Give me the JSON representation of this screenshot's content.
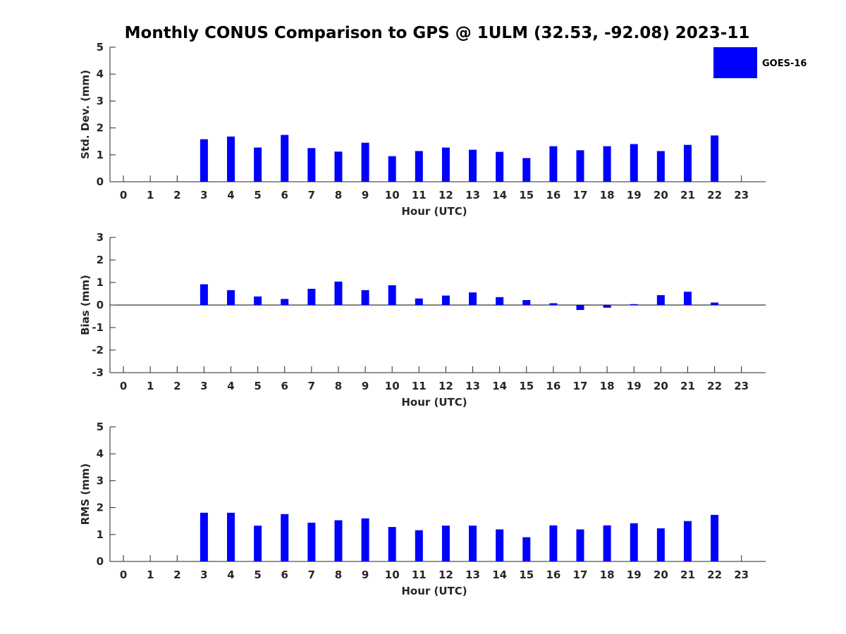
{
  "title": "Monthly CONUS Comparison to GPS @ 1ULM (32.53, -92.08) 2023-11",
  "legend": {
    "label": "GOES-16",
    "color": "#0000ff",
    "placement": "top-right"
  },
  "colors": {
    "bar": "#0000ff",
    "axis": "#262626"
  },
  "chart_data": [
    {
      "type": "bar",
      "ylabel": "Std. Dev. (mm)",
      "xlabel": "Hour (UTC)",
      "ylim": [
        0,
        5
      ],
      "yticks": [
        0,
        1,
        2,
        3,
        4,
        5
      ],
      "zero_line": false,
      "categories": [
        "0",
        "1",
        "2",
        "3",
        "4",
        "5",
        "6",
        "7",
        "8",
        "9",
        "10",
        "11",
        "12",
        "13",
        "14",
        "15",
        "16",
        "17",
        "18",
        "19",
        "20",
        "21",
        "22",
        "23"
      ],
      "series": [
        {
          "name": "GOES-16",
          "values": [
            null,
            null,
            null,
            1.58,
            1.68,
            1.27,
            1.74,
            1.25,
            1.12,
            1.45,
            0.95,
            1.14,
            1.27,
            1.19,
            1.11,
            0.88,
            1.32,
            1.17,
            1.32,
            1.4,
            1.14,
            1.37,
            1.72,
            null
          ]
        }
      ]
    },
    {
      "type": "bar",
      "ylabel": "Bias (mm)",
      "xlabel": "Hour (UTC)",
      "ylim": [
        -3,
        3
      ],
      "yticks": [
        -3,
        -2,
        -1,
        0,
        1,
        2,
        3
      ],
      "zero_line": true,
      "categories": [
        "0",
        "1",
        "2",
        "3",
        "4",
        "5",
        "6",
        "7",
        "8",
        "9",
        "10",
        "11",
        "12",
        "13",
        "14",
        "15",
        "16",
        "17",
        "18",
        "19",
        "20",
        "21",
        "22",
        "23"
      ],
      "series": [
        {
          "name": "GOES-16",
          "values": [
            null,
            null,
            null,
            0.92,
            0.66,
            0.38,
            0.27,
            0.72,
            1.04,
            0.66,
            0.88,
            0.29,
            0.42,
            0.56,
            0.35,
            0.22,
            0.08,
            -0.22,
            -0.12,
            0.04,
            0.44,
            0.59,
            0.11,
            null
          ]
        }
      ]
    },
    {
      "type": "bar",
      "ylabel": "RMS (mm)",
      "xlabel": "Hour (UTC)",
      "ylim": [
        0,
        5
      ],
      "yticks": [
        0,
        1,
        2,
        3,
        4,
        5
      ],
      "zero_line": false,
      "categories": [
        "0",
        "1",
        "2",
        "3",
        "4",
        "5",
        "6",
        "7",
        "8",
        "9",
        "10",
        "11",
        "12",
        "13",
        "14",
        "15",
        "16",
        "17",
        "18",
        "19",
        "20",
        "21",
        "22",
        "23"
      ],
      "series": [
        {
          "name": "GOES-16",
          "values": [
            null,
            null,
            null,
            1.81,
            1.81,
            1.33,
            1.76,
            1.44,
            1.53,
            1.6,
            1.28,
            1.16,
            1.33,
            1.33,
            1.19,
            0.9,
            1.34,
            1.19,
            1.34,
            1.42,
            1.23,
            1.5,
            1.73,
            null
          ]
        }
      ]
    }
  ]
}
